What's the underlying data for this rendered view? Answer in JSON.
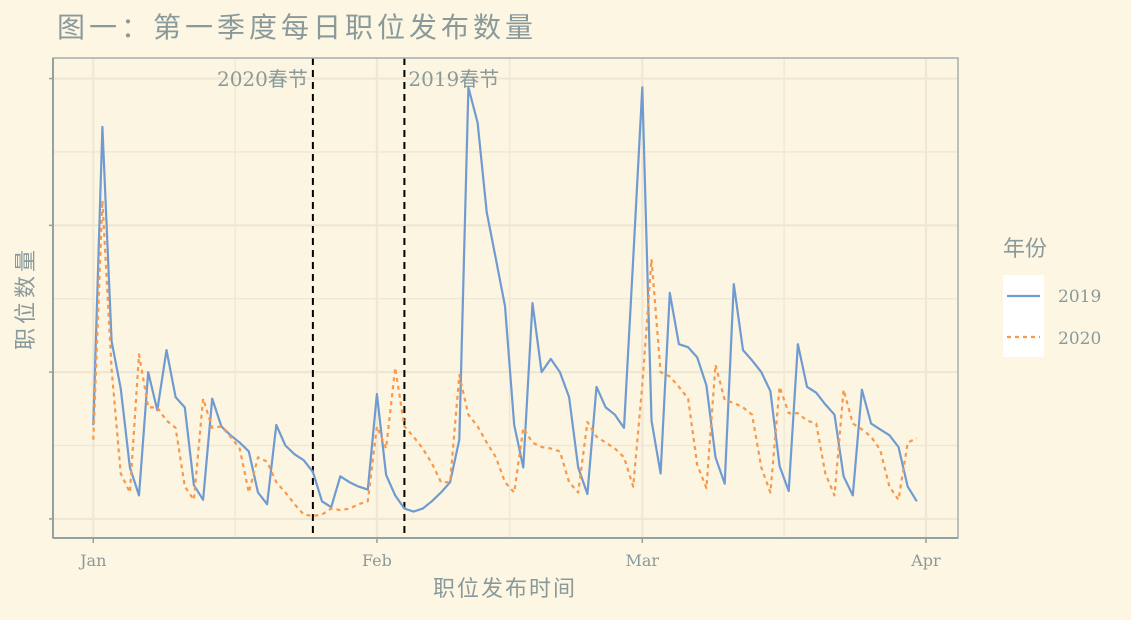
{
  "chart_data": {
    "type": "line",
    "title": "图一：第一季度每日职位发布数量",
    "xlabel": "职位发布时间",
    "ylabel": "职位数量",
    "x_ticks": [
      {
        "label": "Jan",
        "date": "01-01"
      },
      {
        "label": "Feb",
        "date": "02-01"
      },
      {
        "label": "Mar",
        "date": "03-01"
      },
      {
        "label": "Apr",
        "date": "04-01"
      }
    ],
    "y_ticks_labeled": false,
    "y_ticks": [
      0,
      100,
      200,
      300
    ],
    "ylim": [
      -13,
      314
    ],
    "xlim": [
      "12-28",
      "04-05"
    ],
    "grid": true,
    "legend": {
      "title": "年份",
      "position": "right"
    },
    "x": [
      "01-01",
      "01-02",
      "01-03",
      "01-04",
      "01-05",
      "01-06",
      "01-07",
      "01-08",
      "01-09",
      "01-10",
      "01-11",
      "01-12",
      "01-13",
      "01-14",
      "01-15",
      "01-16",
      "01-17",
      "01-18",
      "01-19",
      "01-20",
      "01-21",
      "01-22",
      "01-23",
      "01-24",
      "01-25",
      "01-26",
      "01-27",
      "01-28",
      "01-29",
      "01-30",
      "01-31",
      "02-01",
      "02-02",
      "02-03",
      "02-04",
      "02-05",
      "02-06",
      "02-07",
      "02-08",
      "02-09",
      "02-10",
      "02-11",
      "02-12",
      "02-13",
      "02-14",
      "02-15",
      "02-16",
      "02-17",
      "02-18",
      "02-19",
      "02-20",
      "02-21",
      "02-22",
      "02-23",
      "02-24",
      "02-25",
      "02-26",
      "02-27",
      "02-28",
      "02-29",
      "03-01",
      "03-02",
      "03-03",
      "03-04",
      "03-05",
      "03-06",
      "03-07",
      "03-08",
      "03-09",
      "03-10",
      "03-11",
      "03-12",
      "03-13",
      "03-14",
      "03-15",
      "03-16",
      "03-17",
      "03-18",
      "03-19",
      "03-20",
      "03-21",
      "03-22",
      "03-23",
      "03-24",
      "03-25",
      "03-26",
      "03-27",
      "03-28",
      "03-29",
      "03-30",
      "03-31"
    ],
    "series": [
      {
        "name": "2019",
        "color": "#6f9bd1",
        "linestyle": "solid",
        "values": [
          64,
          267,
          121,
          89,
          35,
          16,
          100,
          74,
          115,
          83,
          76,
          23,
          13,
          82,
          63,
          57,
          52,
          46,
          18,
          10,
          64,
          50,
          44,
          40,
          32,
          12,
          8,
          29,
          25,
          22,
          20,
          85,
          30,
          16,
          7,
          5,
          7,
          12,
          18,
          25,
          54,
          294,
          270,
          209,
          177,
          145,
          64,
          35,
          147,
          100,
          109,
          100,
          83,
          35,
          17,
          90,
          76,
          71,
          62,
          177,
          294,
          67,
          31,
          154,
          119,
          117,
          110,
          91,
          42,
          24,
          160,
          115,
          108,
          100,
          87,
          36,
          19,
          119,
          90,
          86,
          78,
          71,
          29,
          16,
          88,
          65,
          61,
          57,
          49,
          22,
          12
        ]
      },
      {
        "name": "2020",
        "color": "#f8994a",
        "linestyle": "dotted",
        "values": [
          54,
          217,
          102,
          31,
          18,
          112,
          76,
          76,
          67,
          62,
          22,
          13,
          82,
          62,
          63,
          56,
          48,
          18,
          42,
          39,
          25,
          18,
          10,
          3,
          2,
          3,
          7,
          6,
          7,
          10,
          12,
          63,
          48,
          103,
          63,
          56,
          48,
          38,
          25,
          25,
          98,
          71,
          63,
          52,
          42,
          25,
          18,
          62,
          52,
          49,
          48,
          46,
          25,
          18,
          66,
          56,
          52,
          48,
          42,
          22,
          91,
          177,
          100,
          97,
          90,
          82,
          37,
          21,
          105,
          81,
          79,
          76,
          71,
          35,
          18,
          90,
          72,
          72,
          67,
          65,
          31,
          16,
          88,
          65,
          61,
          56,
          47,
          22,
          13,
          52,
          55
        ]
      }
    ],
    "annotations": [
      {
        "label": "2020春节",
        "date": "01-25",
        "align": "left-of-line"
      },
      {
        "label": "2019春节",
        "date": "02-04",
        "align": "right-of-line"
      }
    ]
  },
  "colors": {
    "background": "#fdf6e3",
    "grid": "#efe7d4",
    "axis": "#93a1a1",
    "text": "#8a9a9a"
  }
}
